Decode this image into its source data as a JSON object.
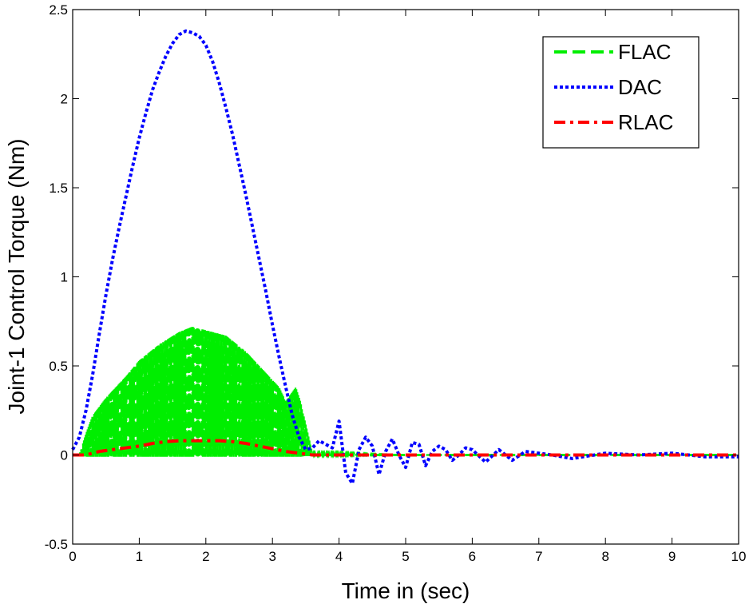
{
  "chart_data": {
    "type": "line",
    "xlabel": "Time in (sec)",
    "ylabel": "Joint-1 Control Torque (Nm)",
    "xlim": [
      0,
      10
    ],
    "ylim": [
      -0.5,
      2.5
    ],
    "xticks": [
      "0",
      "1",
      "2",
      "3",
      "4",
      "5",
      "6",
      "7",
      "8",
      "9",
      "10"
    ],
    "yticks": [
      "-0.5",
      "0",
      "0.5",
      "1",
      "1.5",
      "2",
      "2.5"
    ],
    "grid": false,
    "legend_position": "top-right",
    "series": [
      {
        "name": "FLAC",
        "style": "dashed",
        "color": "#00ee00",
        "render": "oscillating-band",
        "x": [
          0,
          0.1,
          0.2,
          0.3,
          0.5,
          0.8,
          1.0,
          1.3,
          1.6,
          1.8,
          2.0,
          2.3,
          2.6,
          2.9,
          3.1,
          3.2,
          3.35,
          3.42,
          3.6,
          4,
          5,
          6,
          7,
          8,
          9,
          10
        ],
        "upper": [
          0,
          0.0,
          0.12,
          0.22,
          0.32,
          0.44,
          0.53,
          0.62,
          0.69,
          0.72,
          0.7,
          0.67,
          0.58,
          0.46,
          0.38,
          0.3,
          0.38,
          0.3,
          0.01,
          0.01,
          0.0,
          0.0,
          0.0,
          0.0,
          0.0,
          0.0
        ],
        "lower": [
          0,
          0.0,
          -0.01,
          -0.01,
          -0.01,
          -0.01,
          -0.01,
          -0.01,
          -0.01,
          -0.01,
          -0.01,
          -0.01,
          -0.01,
          -0.01,
          -0.01,
          -0.01,
          -0.01,
          -0.01,
          0.0,
          0.0,
          0.0,
          0.0,
          0.0,
          0.0,
          0.0,
          0.0
        ]
      },
      {
        "name": "DAC",
        "style": "dotted",
        "color": "#0000ff",
        "x": [
          0,
          0.1,
          0.2,
          0.3,
          0.4,
          0.5,
          0.6,
          0.7,
          0.8,
          0.9,
          1.0,
          1.1,
          1.2,
          1.3,
          1.4,
          1.5,
          1.6,
          1.7,
          1.8,
          1.9,
          2.0,
          2.1,
          2.2,
          2.3,
          2.4,
          2.5,
          2.6,
          2.7,
          2.8,
          2.9,
          3.0,
          3.1,
          3.2,
          3.3,
          3.4,
          3.5,
          3.6,
          3.7,
          3.8,
          3.9,
          4.0,
          4.1,
          4.2,
          4.3,
          4.4,
          4.5,
          4.6,
          4.7,
          4.8,
          4.9,
          5.0,
          5.1,
          5.2,
          5.3,
          5.4,
          5.5,
          5.6,
          5.7,
          5.8,
          5.9,
          6.0,
          6.2,
          6.4,
          6.6,
          6.8,
          7.0,
          7.2,
          7.5,
          8.0,
          8.5,
          9.0,
          9.5,
          10.0
        ],
        "y": [
          0.03,
          0.1,
          0.25,
          0.45,
          0.68,
          0.9,
          1.1,
          1.28,
          1.45,
          1.62,
          1.78,
          1.92,
          2.05,
          2.15,
          2.24,
          2.31,
          2.36,
          2.38,
          2.37,
          2.35,
          2.3,
          2.21,
          2.09,
          1.95,
          1.8,
          1.63,
          1.46,
          1.28,
          1.1,
          0.92,
          0.73,
          0.55,
          0.38,
          0.22,
          0.1,
          0.03,
          0.04,
          0.08,
          0.06,
          0.04,
          0.19,
          -0.1,
          -0.16,
          0.03,
          0.1,
          0.05,
          -0.11,
          0.02,
          0.09,
          0.0,
          -0.07,
          0.07,
          0.06,
          -0.06,
          0.02,
          0.05,
          0.03,
          -0.03,
          0.0,
          0.04,
          0.03,
          -0.04,
          0.03,
          -0.03,
          0.02,
          0.01,
          0.0,
          -0.02,
          0.01,
          0.0,
          0.01,
          -0.01,
          -0.01
        ]
      },
      {
        "name": "RLAC",
        "style": "dashdot",
        "color": "#ff0000",
        "x": [
          0,
          0.2,
          0.4,
          0.6,
          0.8,
          1.0,
          1.2,
          1.4,
          1.6,
          1.8,
          2.0,
          2.2,
          2.4,
          2.6,
          2.8,
          3.0,
          3.2,
          3.4,
          3.6,
          4,
          5,
          6,
          7,
          8,
          9,
          10
        ],
        "y": [
          0.0,
          0.0,
          0.02,
          0.03,
          0.04,
          0.05,
          0.065,
          0.075,
          0.08,
          0.08,
          0.08,
          0.08,
          0.075,
          0.065,
          0.05,
          0.035,
          0.02,
          0.01,
          0.0,
          0.0,
          0.0,
          0.0,
          0.0,
          0.0,
          0.0,
          0.0
        ]
      }
    ]
  }
}
